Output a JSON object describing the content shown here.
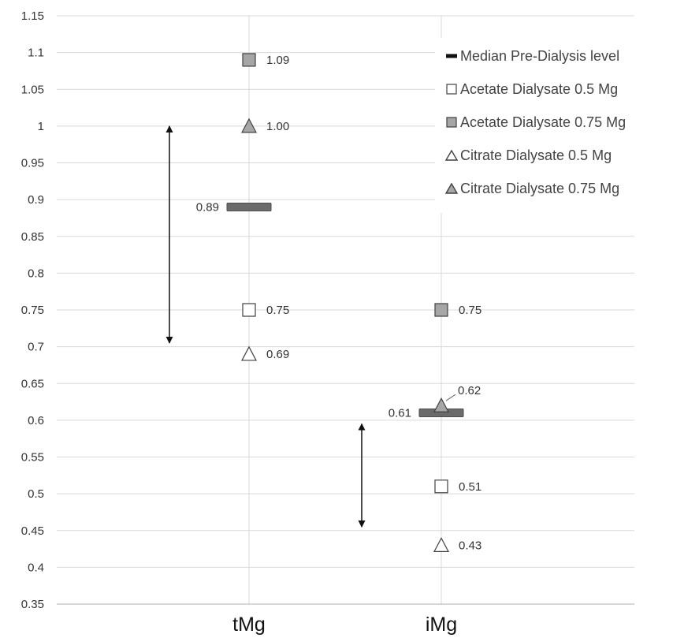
{
  "chart_data": {
    "type": "scatter",
    "categories": [
      "tMg",
      "iMg"
    ],
    "ylim": [
      0.35,
      1.15
    ],
    "ystep": 0.05,
    "ytick_labels": [
      "0.35",
      "0.4",
      "0.45",
      "0.5",
      "0.55",
      "0.6",
      "0.65",
      "0.7",
      "0.75",
      "0.8",
      "0.85",
      "0.9",
      "0.95",
      "1",
      "1.05",
      "1.1",
      "1.15"
    ],
    "grid": true,
    "legend_position": "top-right",
    "series": [
      {
        "name": "Median Pre-Dialysis level",
        "marker": "bar",
        "fill": "#6b6b6b",
        "values": [
          0.89,
          0.61
        ],
        "labels": [
          "0.89",
          "0.61"
        ]
      },
      {
        "name": "Acetate Dialysate 0.5 Mg",
        "marker": "square",
        "fill": "#ffffff",
        "values": [
          0.75,
          0.51
        ],
        "labels": [
          "0.75",
          "0.51"
        ]
      },
      {
        "name": "Acetate Dialysate 0.75 Mg",
        "marker": "square",
        "fill": "#a6a6a6",
        "values": [
          1.09,
          0.75
        ],
        "labels": [
          "1.09",
          "0.75"
        ]
      },
      {
        "name": "Citrate Dialysate 0.5 Mg",
        "marker": "triangle",
        "fill": "#ffffff",
        "values": [
          0.69,
          0.43
        ],
        "labels": [
          "0.69",
          "0.43"
        ]
      },
      {
        "name": "Citrate Dialysate 0.75 Mg",
        "marker": "triangle",
        "fill": "#a6a6a6",
        "values": [
          1.0,
          0.62
        ],
        "labels": [
          "1.00",
          "0.62"
        ]
      }
    ],
    "range_arrows": [
      {
        "category": "tMg",
        "from": 0.705,
        "to": 1.0
      },
      {
        "category": "iMg",
        "from": 0.455,
        "to": 0.595
      }
    ]
  }
}
